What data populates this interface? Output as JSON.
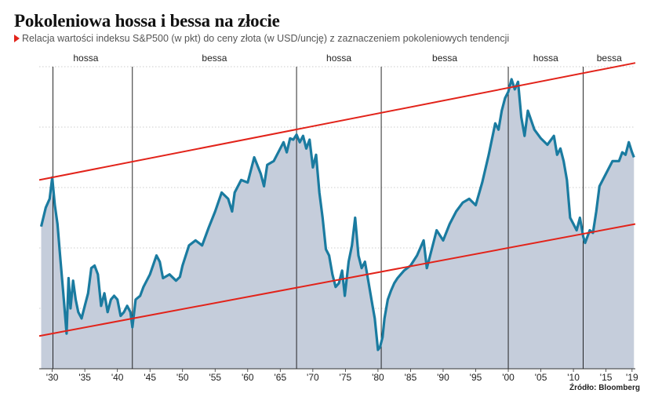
{
  "header": {
    "title": "Pokoleniowa hossa i bessa na złocie",
    "subtitle": "Relacja wartości indeksu S&P500 (w pkt) do ceny złota (w USD/uncję) z zaznaczeniem pokoleniowych tendencji"
  },
  "source": "Źródło: Bloomberg",
  "colors": {
    "line": "#1a7ba0",
    "area": "#c5cddb",
    "trend": "#e2231a",
    "grid": "#9a9a9a",
    "divider": "#111111",
    "marker": "#e2231a"
  },
  "chart_data": {
    "type": "area",
    "title": "Pokoleniowa hossa i bessa na złocie",
    "xlabel": "",
    "ylabel": "",
    "xlim": [
      1928,
      2019.5
    ],
    "ylim": [
      0,
      2.4
    ],
    "grid": "horizontal dashed",
    "x_tick_labels": [
      "'30",
      "'35",
      "'40",
      "'45",
      "'50",
      "'55",
      "'60",
      "'65",
      "'70",
      "'75",
      "'80",
      "'85",
      "'90",
      "'95",
      "'00",
      "'05",
      "'10",
      "'15",
      "'19"
    ],
    "x_tick_values": [
      1930,
      1935,
      1940,
      1945,
      1950,
      1955,
      1960,
      1965,
      1970,
      1975,
      1980,
      1985,
      1990,
      1995,
      2000,
      2005,
      2010,
      2015,
      2019
    ],
    "phases": [
      {
        "label": "hossa",
        "start": 1928,
        "end": 1942.3
      },
      {
        "label": "bessa",
        "start": 1942.3,
        "end": 1967.5
      },
      {
        "label": "hossa",
        "start": 1967.5,
        "end": 1980.5
      },
      {
        "label": "bessa",
        "start": 1980.5,
        "end": 2000
      },
      {
        "label": "hossa",
        "start": 2000,
        "end": 2011.5
      },
      {
        "label": "bessa",
        "start": 2011.5,
        "end": 2019.5
      }
    ],
    "phase_dividers": [
      1930.1,
      1942.3,
      1967.5,
      1980.5,
      2000,
      2011.5
    ],
    "trend_lines": [
      {
        "name": "upper",
        "points": [
          [
            1928,
            1.5
          ],
          [
            2019.5,
            2.43
          ]
        ]
      },
      {
        "name": "lower",
        "points": [
          [
            1928,
            0.26
          ],
          [
            2019.5,
            1.15
          ]
        ]
      }
    ],
    "series": [
      {
        "x": [
          1928.3,
          1929.0,
          1929.6,
          1930.0,
          1930.4,
          1930.8,
          1931.2,
          1931.7,
          1932.2,
          1932.5,
          1932.8,
          1933.2,
          1933.6,
          1934.0,
          1934.5,
          1935.0,
          1935.5,
          1936.0,
          1936.5,
          1937.0,
          1937.5,
          1938.0,
          1938.5,
          1939.0,
          1939.5,
          1940.0,
          1940.5,
          1941.0,
          1941.5,
          1942.0,
          1942.3,
          1942.8,
          1943.5,
          1944.0,
          1945.0,
          1946.0,
          1946.5,
          1947.0,
          1948.0,
          1949.0,
          1949.6,
          1950.0,
          1951.0,
          1952.0,
          1953.0,
          1954.0,
          1955.0,
          1956.0,
          1957.0,
          1957.6,
          1958.0,
          1959.0,
          1960.0,
          1961.0,
          1962.0,
          1962.5,
          1963.0,
          1964.0,
          1965.0,
          1965.5,
          1966.0,
          1966.5,
          1967.0,
          1967.5,
          1968.0,
          1968.5,
          1969.0,
          1969.5,
          1970.0,
          1970.5,
          1971.0,
          1971.5,
          1972.0,
          1972.5,
          1973.0,
          1973.5,
          1974.0,
          1974.5,
          1974.9,
          1975.5,
          1976.0,
          1976.5,
          1977.0,
          1977.5,
          1978.0,
          1978.5,
          1979.0,
          1979.5,
          1980.0,
          1980.3,
          1980.7,
          1981.0,
          1981.5,
          1982.0,
          1982.5,
          1983.0,
          1984.0,
          1985.0,
          1986.0,
          1987.0,
          1987.5,
          1988.0,
          1989.0,
          1990.0,
          1991.0,
          1992.0,
          1993.0,
          1994.0,
          1995.0,
          1996.0,
          1997.0,
          1998.0,
          1998.5,
          1999.0,
          1999.5,
          2000.0,
          2000.5,
          2001.0,
          2001.5,
          2002.0,
          2002.5,
          2003.0,
          2004.0,
          2005.0,
          2006.0,
          2007.0,
          2007.5,
          2008.0,
          2008.5,
          2009.0,
          2009.5,
          2010.0,
          2010.5,
          2011.0,
          2011.5,
          2011.8,
          2012.5,
          2013.0,
          2013.5,
          2014.0,
          2015.0,
          2016.0,
          2017.0,
          2017.5,
          2018.0,
          2018.5,
          2019.0,
          2019.3
        ],
        "values": [
          1.13,
          1.28,
          1.35,
          1.52,
          1.3,
          1.15,
          0.9,
          0.6,
          0.28,
          0.72,
          0.48,
          0.7,
          0.55,
          0.45,
          0.4,
          0.5,
          0.6,
          0.8,
          0.82,
          0.75,
          0.5,
          0.6,
          0.45,
          0.55,
          0.58,
          0.55,
          0.42,
          0.45,
          0.5,
          0.45,
          0.33,
          0.55,
          0.58,
          0.65,
          0.75,
          0.9,
          0.85,
          0.72,
          0.75,
          0.7,
          0.73,
          0.82,
          0.98,
          1.02,
          0.98,
          1.12,
          1.25,
          1.4,
          1.35,
          1.25,
          1.4,
          1.5,
          1.48,
          1.68,
          1.55,
          1.45,
          1.62,
          1.65,
          1.75,
          1.8,
          1.72,
          1.83,
          1.82,
          1.86,
          1.8,
          1.85,
          1.75,
          1.82,
          1.6,
          1.7,
          1.4,
          1.2,
          0.95,
          0.9,
          0.75,
          0.65,
          0.68,
          0.78,
          0.58,
          0.85,
          0.98,
          1.2,
          0.9,
          0.8,
          0.85,
          0.7,
          0.55,
          0.4,
          0.15,
          0.17,
          0.25,
          0.4,
          0.55,
          0.62,
          0.68,
          0.72,
          0.78,
          0.82,
          0.9,
          1.02,
          0.8,
          0.9,
          1.1,
          1.02,
          1.15,
          1.25,
          1.32,
          1.35,
          1.3,
          1.48,
          1.7,
          1.95,
          1.9,
          2.05,
          2.15,
          2.2,
          2.3,
          2.22,
          2.28,
          2.0,
          1.85,
          2.05,
          1.9,
          1.83,
          1.78,
          1.85,
          1.7,
          1.75,
          1.65,
          1.5,
          1.2,
          1.15,
          1.1,
          1.2,
          1.05,
          1.0,
          1.1,
          1.08,
          1.25,
          1.45,
          1.55,
          1.65,
          1.65,
          1.72,
          1.7,
          1.8,
          1.72,
          1.68
        ]
      }
    ]
  }
}
